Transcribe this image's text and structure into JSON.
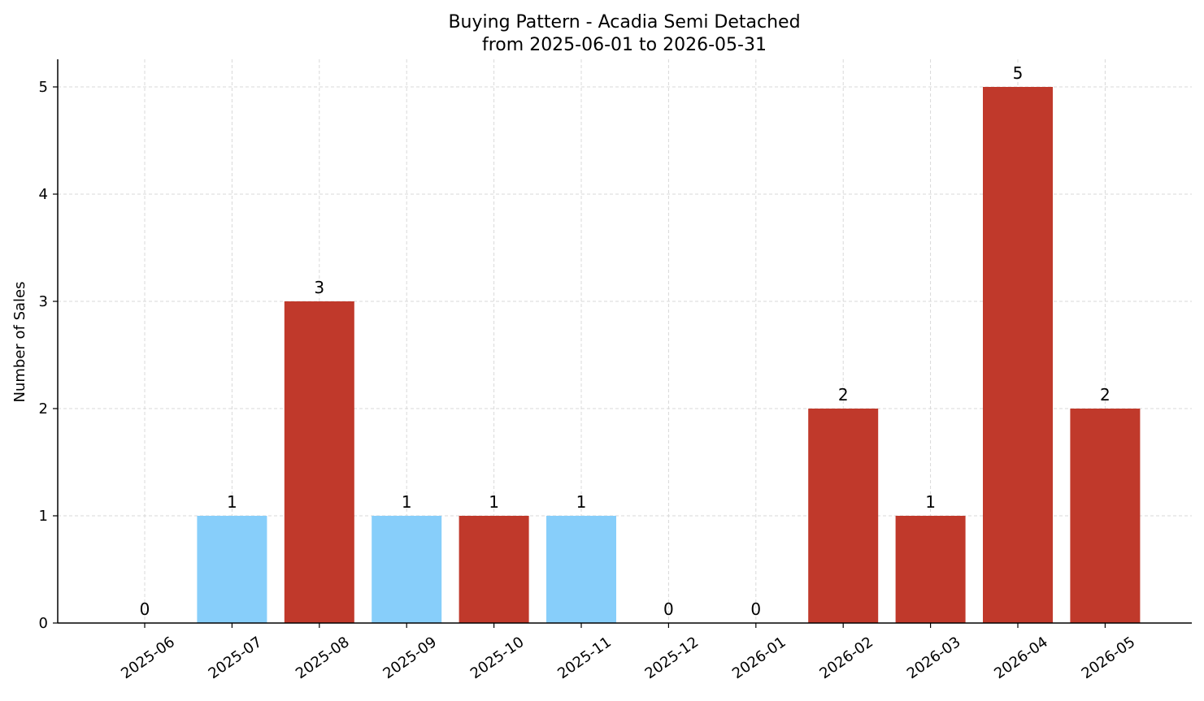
{
  "chart_data": {
    "type": "bar",
    "title": "Buying Pattern - Acadia Semi Detached",
    "subtitle": "from 2025-06-01 to 2026-05-31",
    "xlabel": "",
    "ylabel": "Number of Sales",
    "categories": [
      "2025-06",
      "2025-07",
      "2025-08",
      "2025-09",
      "2025-10",
      "2025-11",
      "2025-12",
      "2026-01",
      "2026-02",
      "2026-03",
      "2026-04",
      "2026-05"
    ],
    "values": [
      0,
      1,
      3,
      1,
      1,
      1,
      0,
      0,
      2,
      1,
      5,
      2
    ],
    "bar_colors": [
      "#c0392b",
      "#87cefa",
      "#c0392b",
      "#87cefa",
      "#c0392b",
      "#87cefa",
      "#c0392b",
      "#c0392b",
      "#c0392b",
      "#c0392b",
      "#c0392b",
      "#c0392b"
    ],
    "yticks": [
      0,
      1,
      2,
      3,
      4,
      5
    ],
    "ylim": [
      0,
      5.25
    ],
    "grid": true,
    "legend": "none"
  }
}
